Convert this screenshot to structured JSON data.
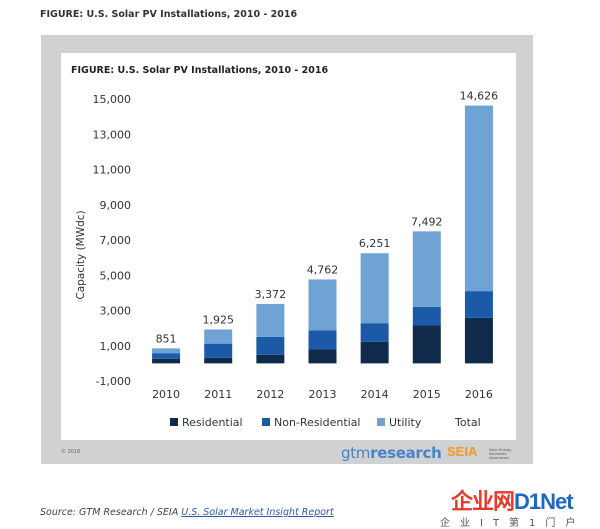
{
  "page": {
    "title": "FIGURE: U.S. Solar PV Installations, 2010 - 2016",
    "source_prefix": "Source: GTM Research / SEIA ",
    "source_link": "U.S. Solar Market Insight Report",
    "copyright": "© 2016",
    "gtm_logo_a": "gtm",
    "gtm_logo_b": "research",
    "seia_logo": "SEIA",
    "seia_subtitle": "Solar Energy Industries Association",
    "watermark_main_a": "企业网",
    "watermark_main_b": "D1Net",
    "watermark_sub": "企业IT第1门户"
  },
  "colors": {
    "residential": "#0f2a4a",
    "non_residential": "#1a5aa6",
    "utility": "#6fa3d6",
    "axis_text": "#333333",
    "panel_bg": "#cfd1d2"
  },
  "chart_data": {
    "type": "bar",
    "stacked": true,
    "title": "FIGURE: U.S. Solar PV Installations, 2010 - 2016",
    "xlabel": "",
    "ylabel": "Capacity (MWdc)",
    "ylim": [
      -1000,
      15000
    ],
    "yticks": [
      "-1,000",
      "1,000",
      "3,000",
      "5,000",
      "7,000",
      "9,000",
      "11,000",
      "13,000",
      "15,000"
    ],
    "ytick_values": [
      -1000,
      1000,
      3000,
      5000,
      7000,
      9000,
      11000,
      13000,
      15000
    ],
    "categories": [
      "2010",
      "2011",
      "2012",
      "2013",
      "2014",
      "2015",
      "2016"
    ],
    "series": [
      {
        "name": "Residential",
        "values": [
          260,
          310,
          490,
          790,
          1230,
          2150,
          2580
        ]
      },
      {
        "name": "Non-Residential",
        "values": [
          320,
          810,
          1010,
          1080,
          1050,
          1060,
          1520
        ]
      },
      {
        "name": "Utility",
        "values": [
          271,
          805,
          1872,
          2892,
          3971,
          4282,
          10526
        ]
      }
    ],
    "totals": [
      851,
      1925,
      3372,
      4762,
      6251,
      7492,
      14626
    ],
    "total_labels": [
      "851",
      "1,925",
      "3,372",
      "4,762",
      "6,251",
      "7,492",
      "14,626"
    ],
    "legend": [
      "Residential",
      "Non-Residential",
      "Utility",
      "Total"
    ],
    "legend_position": "bottom",
    "grid": false
  }
}
